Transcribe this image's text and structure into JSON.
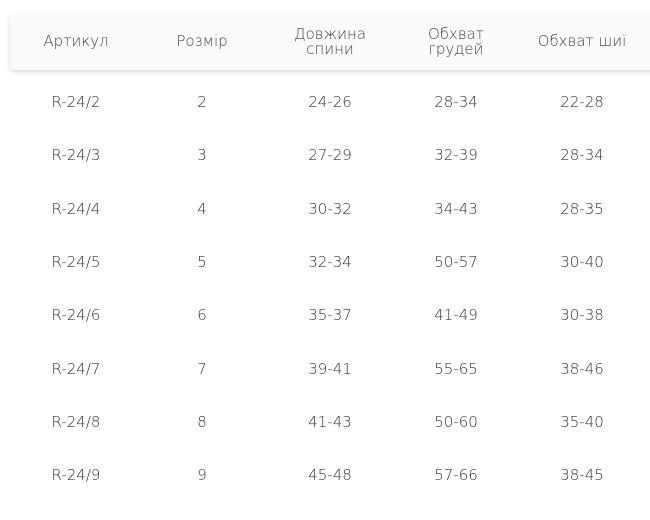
{
  "table": {
    "headers": [
      "Артикул",
      "Розмір",
      "Довжина спини",
      "Обхват грудей",
      "Обхват шиї"
    ],
    "header_lines": [
      [
        "Артикул"
      ],
      [
        "Розмір"
      ],
      [
        "Довжина",
        "спини"
      ],
      [
        "Обхват",
        "грудей"
      ],
      [
        "Обхват шиї"
      ]
    ],
    "rows": [
      [
        "R-24/2",
        "2",
        "24-26",
        "28-34",
        "22-28"
      ],
      [
        "R-24/3",
        "3",
        "27-29",
        "32-39",
        "28-34"
      ],
      [
        "R-24/4",
        "4",
        "30-32",
        "34-43",
        "28-35"
      ],
      [
        "R-24/5",
        "5",
        "32-34",
        "50-57",
        "30-40"
      ],
      [
        "R-24/6",
        "6",
        "35-37",
        "41-49",
        "30-38"
      ],
      [
        "R-24/7",
        "7",
        "39-41",
        "55-65",
        "38-46"
      ],
      [
        "R-24/8",
        "8",
        "41-43",
        "50-60",
        "35-40"
      ],
      [
        "R-24/9",
        "9",
        "45-48",
        "57-66",
        "38-45"
      ]
    ]
  }
}
